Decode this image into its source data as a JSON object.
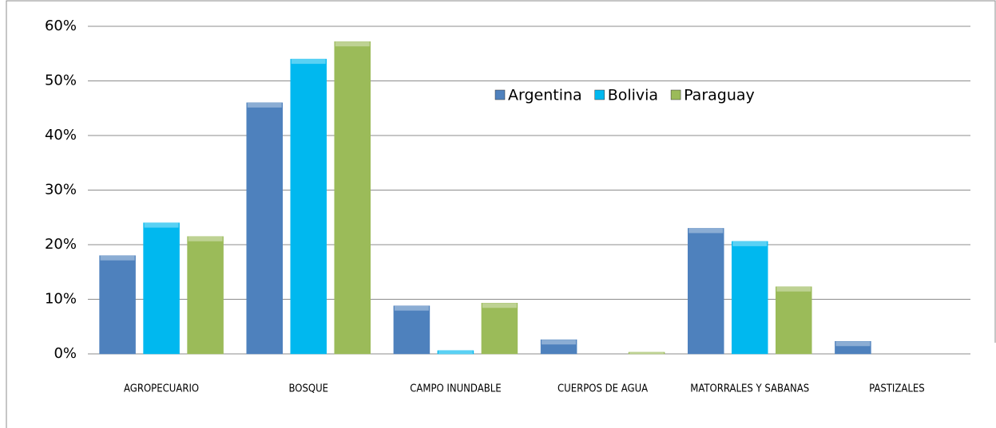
{
  "chart_data": {
    "type": "bar",
    "categories": [
      "AGROPECUARIO",
      "BOSQUE",
      "CAMPO INUNDABLE",
      "CUERPOS DE AGUA",
      "MATORRALES Y SABANAS",
      "PASTIZALES"
    ],
    "series": [
      {
        "name": "Argentina",
        "color": "#4f81bd",
        "values": [
          18,
          46,
          8.8,
          2.6,
          23,
          2.3
        ]
      },
      {
        "name": "Bolivia",
        "color": "#00b8ef",
        "values": [
          24,
          54,
          0.6,
          0,
          20.6,
          0
        ]
      },
      {
        "name": "Paraguay",
        "color": "#9bbb59",
        "values": [
          21.5,
          57.2,
          9.3,
          0.3,
          12.3,
          0
        ]
      }
    ],
    "ylim": [
      0,
      60
    ],
    "yticks": [
      {
        "value": 0,
        "label": "0%"
      },
      {
        "value": 10,
        "label": "10%"
      },
      {
        "value": 20,
        "label": "20%"
      },
      {
        "value": 30,
        "label": "30%"
      },
      {
        "value": 40,
        "label": "40%"
      },
      {
        "value": 50,
        "label": "50%"
      },
      {
        "value": 60,
        "label": "60%"
      }
    ],
    "grid": true
  }
}
